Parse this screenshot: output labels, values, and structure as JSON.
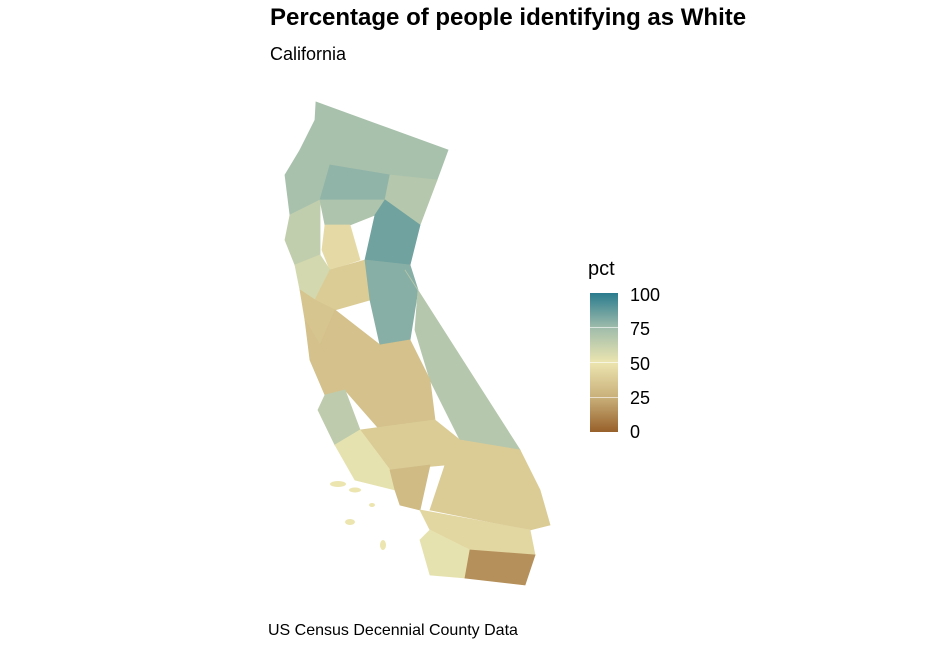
{
  "title": "Percentage of people identifying as White",
  "subtitle": "California",
  "caption": "US Census Decennial County Data",
  "legend": {
    "title": "pct",
    "ticks": [
      "100",
      "75",
      "50",
      "25",
      "0"
    ],
    "colors": {
      "0": "#98602a",
      "25": "#c9b07a",
      "50": "#ece5b0",
      "75": "#9fbcab",
      "100": "#2a7b8e"
    }
  },
  "regions_pct": [
    72,
    72,
    78,
    68,
    64,
    70,
    85,
    45,
    58,
    38,
    80,
    35,
    68,
    33,
    33,
    65,
    38,
    52,
    30,
    38,
    43,
    52,
    15,
    50
  ]
}
